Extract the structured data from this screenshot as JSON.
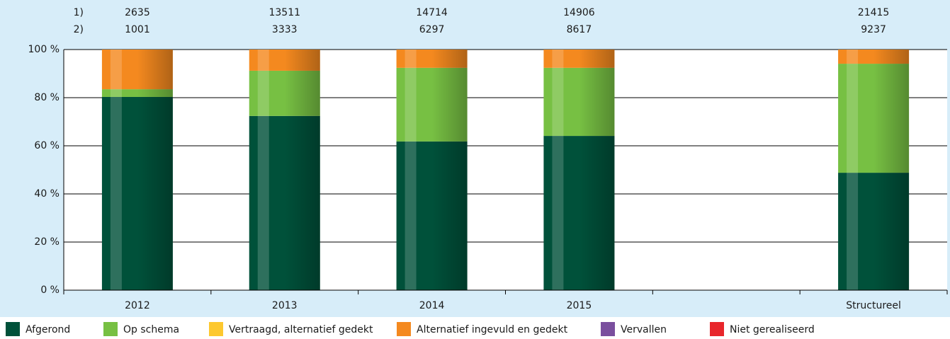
{
  "chart_data": {
    "type": "stacked_bar",
    "categories": [
      "2012",
      "2013",
      "2014",
      "2015",
      null,
      "Structureel"
    ],
    "series": [
      {
        "name": "Afgerond",
        "color": "#00513a",
        "values": [
          80.3,
          72.4,
          61.8,
          64.1,
          null,
          48.8
        ]
      },
      {
        "name": "Op schema",
        "color": "#77c043",
        "values": [
          3.2,
          18.8,
          30.6,
          28.3,
          null,
          45.3
        ]
      },
      {
        "name": "Vertraagd, alternatief gedekt",
        "color": "#fdc82f",
        "values": [
          0,
          0,
          0,
          0,
          null,
          0
        ]
      },
      {
        "name": "Alternatief ingevuld en gedekt",
        "color": "#f4891f",
        "values": [
          16.5,
          8.8,
          7.6,
          7.6,
          null,
          5.9
        ]
      },
      {
        "name": "Vervallen",
        "color": "#7a4f9e",
        "values": [
          0,
          0,
          0,
          0,
          null,
          0
        ]
      },
      {
        "name": "Niet gerealiseerd",
        "color": "#e8262b",
        "values": [
          0,
          0,
          0,
          0,
          null,
          0
        ]
      }
    ],
    "row_labels": [
      "1)",
      "2)"
    ],
    "row_values": [
      [
        "2635",
        "13511",
        "14714",
        "14906",
        null,
        "21415"
      ],
      [
        "1001",
        "3333",
        "6297",
        "8617",
        null,
        "9237"
      ]
    ],
    "ylim": [
      0,
      100
    ],
    "yticks": [
      {
        "value": 0,
        "label": "0 %"
      },
      {
        "value": 20,
        "label": "20 %"
      },
      {
        "value": 40,
        "label": "40 %"
      },
      {
        "value": 60,
        "label": "60 %"
      },
      {
        "value": 80,
        "label": "80 %"
      },
      {
        "value": 100,
        "label": "100 %"
      }
    ],
    "grid": true,
    "legend": "bottom"
  }
}
